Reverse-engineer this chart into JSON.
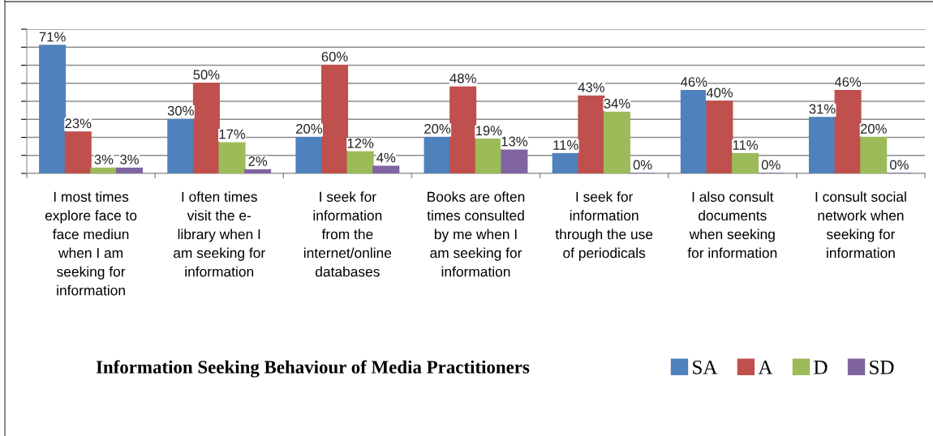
{
  "chart_data": {
    "type": "bar",
    "title": "Information Seeking Behaviour of Media Practitioners",
    "categories": [
      "I most times\nexplore face to\nface mediun\nwhen I am\nseeking for\ninformation",
      "I often times\nvisit the e-\nlibrary when I\nam seeking for\ninformation",
      "I seek for\ninformation\nfrom the\ninternet/online\ndatabases",
      "Books are often\ntimes consulted\nby me when I\nam seeking for\ninformation",
      "I seek for\ninformation\nthrough the use\nof periodicals",
      "I also consult\ndocuments\nwhen seeking\nfor information",
      "I consult social\nnetwork when\nseeking for\ninformation"
    ],
    "series": [
      {
        "name": "SA",
        "color": "#4f81bd",
        "values": [
          71,
          30,
          20,
          20,
          11,
          46,
          31
        ],
        "value_labels": [
          "71%",
          "30%",
          "20%",
          "20%",
          "11%",
          "46%",
          "31%"
        ]
      },
      {
        "name": "A",
        "color": "#c0504d",
        "values": [
          23,
          50,
          60,
          48,
          43,
          40,
          46
        ],
        "value_labels": [
          "23%",
          "50%",
          "60%",
          "48%",
          "43%",
          "40%",
          "46%"
        ]
      },
      {
        "name": "D",
        "color": "#9bbb59",
        "values": [
          3,
          17,
          12,
          19,
          34,
          11,
          20
        ],
        "value_labels": [
          "3%",
          "17%",
          "12%",
          "19%",
          "34%",
          "11%",
          "20%"
        ]
      },
      {
        "name": "SD",
        "color": "#8064a2",
        "values": [
          3,
          2,
          4,
          13,
          0,
          0,
          0
        ],
        "value_labels": [
          "3%",
          "2%",
          "4%",
          "13%",
          "0%",
          "0%",
          "0%"
        ]
      }
    ],
    "ylim": [
      0,
      80
    ],
    "yticks": [
      {
        "value": 0,
        "label": null
      },
      {
        "value": 10,
        "label": null
      },
      {
        "value": 20,
        "label": null
      },
      {
        "value": 30,
        "label": null
      },
      {
        "value": 40,
        "label": null
      },
      {
        "value": 50,
        "label": null
      },
      {
        "value": 60,
        "label": null
      },
      {
        "value": 70,
        "label": null
      },
      {
        "value": 80,
        "label": null
      }
    ],
    "tick_labels": "x",
    "grid": "y",
    "legend": "bottom right"
  }
}
